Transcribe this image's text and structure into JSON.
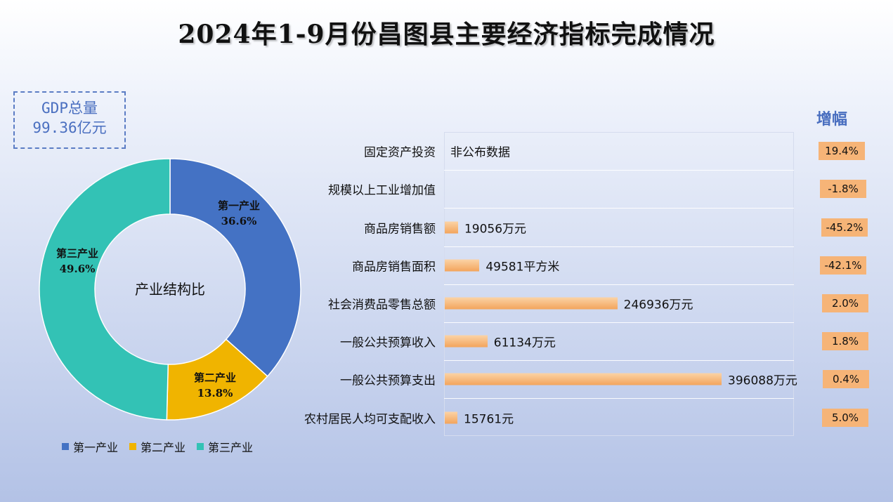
{
  "title": "2024年1-9月份昌图县主要经济指标完成情况",
  "gdp": {
    "label": "GDP总量",
    "value": "99.36亿元"
  },
  "donut": {
    "center_label": "产业结构比",
    "slices": [
      {
        "name": "第一产业",
        "value": 36.6,
        "label": "36.6%",
        "color": "#4472c4"
      },
      {
        "name": "第二产业",
        "value": 13.8,
        "label": "13.8%",
        "color": "#f0b400"
      },
      {
        "name": "第三产业",
        "value": 49.6,
        "label": "49.6%",
        "color": "#33c2b5"
      }
    ]
  },
  "growth_header": "增幅",
  "chart_data": [
    {
      "type": "pie",
      "categories": [
        "第一产业",
        "第二产业",
        "第三产业"
      ],
      "values": [
        36.6,
        13.8,
        49.6
      ],
      "title": "产业结构比"
    },
    {
      "type": "bar",
      "categories": [
        "固定资产投资",
        "规模以上工业增加值",
        "商品房销售额",
        "商品房销售面积",
        "社会消费品零售总额",
        "一般公共预算收入",
        "一般公共预算支出",
        "农村居民人均可支配收入"
      ],
      "values": [
        null,
        null,
        19056,
        49581,
        246936,
        61134,
        396088,
        15761
      ],
      "value_labels": [
        "非公布数据",
        "",
        "19056万元",
        "49581平方米",
        "246936万元",
        "61134万元",
        "396088万元",
        "15761元"
      ],
      "growth": [
        "19.4%",
        "-1.8%",
        "-45.2%",
        "-42.1%",
        "2.0%",
        "1.8%",
        "0.4%",
        "5.0%"
      ],
      "growth_title": "增幅"
    }
  ],
  "colors": {
    "bar_top": "#fbd3a6",
    "bar_bottom": "#f3a45c",
    "growth_badge": "#f6b477",
    "accent": "#4a6fc0"
  }
}
